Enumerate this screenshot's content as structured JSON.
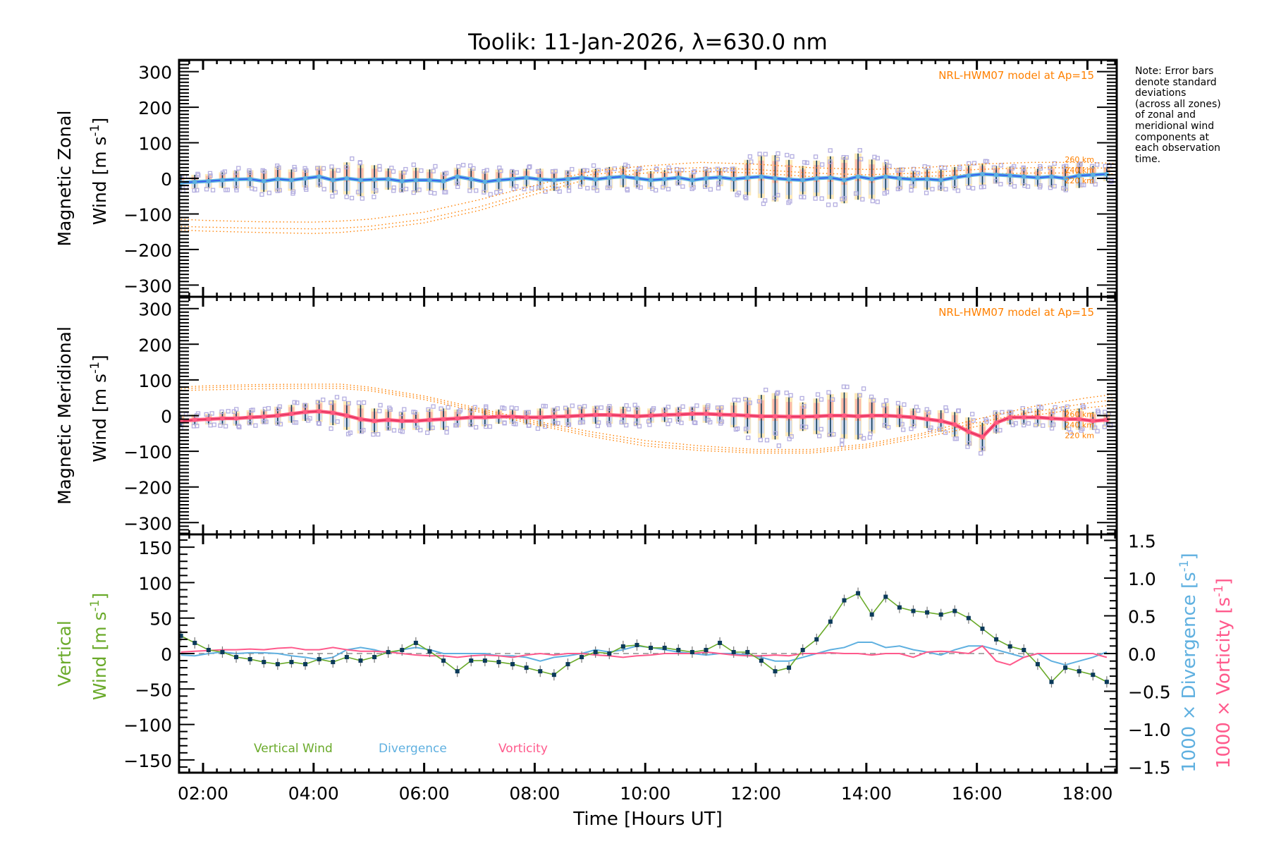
{
  "chart_data": {
    "type": "line",
    "title": "Toolik: 11-Jan-2026, λ=630.0 nm",
    "xlabel": "Time [Hours UT]",
    "xlim": [
      1.566,
      18.53
    ],
    "x_ticks": [
      {
        "v": 2,
        "label": "02:00"
      },
      {
        "v": 4,
        "label": "04:00"
      },
      {
        "v": 6,
        "label": "06:00"
      },
      {
        "v": 8,
        "label": "08:00"
      },
      {
        "v": 10,
        "label": "10:00"
      },
      {
        "v": 12,
        "label": "12:00"
      },
      {
        "v": 14,
        "label": "14:00"
      },
      {
        "v": 16,
        "label": "16:00"
      },
      {
        "v": 18,
        "label": "18:00"
      }
    ],
    "t_start": 1.6,
    "t_step": 0.25,
    "model_hours": [
      1.6,
      2,
      3,
      4,
      4.5,
      5,
      6,
      7,
      8,
      9,
      10,
      11,
      12,
      13,
      14,
      15,
      16,
      17,
      18,
      18.5
    ],
    "note": [
      "Note: Error bars",
      "denote standard",
      "deviations",
      "(across all zones)",
      "of zonal and",
      "meridional wind",
      "components at",
      "each observation",
      "time."
    ],
    "panels": [
      {
        "id": "zonal",
        "ylabel_line1": "Magnetic Zonal",
        "ylabel_line2": "Wind [m s",
        "ylabel_sup": "-1",
        "ylabel_close": "]",
        "ylim": [
          -333,
          333
        ],
        "y_ticks": [
          {
            "v": 300,
            "label": "300"
          },
          {
            "v": 200,
            "label": "200"
          },
          {
            "v": 100,
            "label": "100"
          },
          {
            "v": 0,
            "label": "0"
          },
          {
            "v": -100,
            "label": "−100"
          },
          {
            "v": -200,
            "label": "−200"
          },
          {
            "v": -300,
            "label": "−300"
          }
        ],
        "model_label": "NRL-HWM07 model at Ap=15",
        "series_color": "#5ab0e0",
        "series_core_color": "#3050f0",
        "values": [
          -12,
          -10,
          -8,
          -5,
          -3,
          -2,
          -8,
          -2,
          -5,
          0,
          5,
          -5,
          0,
          -5,
          -3,
          -2,
          -8,
          -5,
          -5,
          -8,
          5,
          -2,
          -10,
          -5,
          -2,
          2,
          -3,
          -5,
          -2,
          2,
          -3,
          2,
          5,
          0,
          -5,
          -2,
          2,
          -5,
          0,
          3,
          -2,
          2,
          5,
          0,
          -3,
          -5,
          0,
          2,
          -5,
          5,
          -2,
          5,
          0,
          -3,
          -2,
          -5,
          2,
          8,
          12,
          10,
          8,
          5,
          2,
          5,
          0,
          8,
          10,
          12
        ],
        "std": [
          20,
          20,
          20,
          22,
          25,
          25,
          30,
          35,
          30,
          25,
          30,
          35,
          45,
          45,
          40,
          30,
          30,
          35,
          30,
          25,
          25,
          30,
          30,
          30,
          25,
          25,
          30,
          30,
          25,
          25,
          30,
          30,
          30,
          25,
          25,
          25,
          20,
          20,
          25,
          25,
          35,
          50,
          60,
          65,
          55,
          40,
          50,
          60,
          65,
          65,
          55,
          40,
          30,
          25,
          30,
          30,
          30,
          30,
          30,
          25,
          25,
          25,
          25,
          30,
          35,
          35,
          25,
          20
        ],
        "models": [
          {
            "label": "260 km",
            "values": [
              -115,
              -118,
              -122,
              -123,
              -120,
              -115,
              -95,
              -60,
              -20,
              20,
              35,
              45,
              40,
              30,
              25,
              30,
              40,
              45,
              45,
              42
            ]
          },
          {
            "label": "240 km",
            "values": [
              -135,
              -137,
              -140,
              -142,
              -140,
              -135,
              -115,
              -80,
              -35,
              10,
              25,
              30,
              25,
              15,
              10,
              15,
              25,
              30,
              30,
              28
            ]
          },
          {
            "label": "220 km",
            "values": [
              -145,
              -148,
              -152,
              -155,
              -152,
              -145,
              -125,
              -90,
              -45,
              0,
              15,
              20,
              15,
              5,
              0,
              5,
              12,
              15,
              15,
              12
            ]
          }
        ]
      },
      {
        "id": "meridional",
        "ylabel_line1": "Magnetic Meridional",
        "ylabel_line2": "Wind [m s",
        "ylabel_sup": "-1",
        "ylabel_close": "]",
        "ylim": [
          -333,
          333
        ],
        "y_ticks": [
          {
            "v": 300,
            "label": "300"
          },
          {
            "v": 200,
            "label": "200"
          },
          {
            "v": 100,
            "label": "100"
          },
          {
            "v": 0,
            "label": "0"
          },
          {
            "v": -100,
            "label": "−100"
          },
          {
            "v": -200,
            "label": "−200"
          },
          {
            "v": -300,
            "label": "−300"
          }
        ],
        "model_label": "NRL-HWM07 model at Ap=15",
        "series_color": "#ff5a80",
        "series_core_color": "#e0305a",
        "values": [
          -15,
          -12,
          -10,
          -8,
          -8,
          -5,
          -3,
          0,
          5,
          10,
          12,
          8,
          0,
          -10,
          -15,
          -12,
          -15,
          -15,
          -12,
          -10,
          -8,
          -5,
          -5,
          -3,
          -3,
          -5,
          -5,
          -3,
          -2,
          0,
          2,
          2,
          0,
          -2,
          0,
          2,
          3,
          5,
          5,
          3,
          2,
          0,
          -2,
          -2,
          -3,
          -3,
          -2,
          0,
          0,
          -2,
          0,
          0,
          -2,
          -5,
          -10,
          -15,
          -25,
          -45,
          -60,
          -20,
          -5,
          -5,
          -5,
          -8,
          -10,
          -10,
          -15,
          -12
        ],
        "std": [
          15,
          15,
          15,
          18,
          20,
          20,
          20,
          25,
          25,
          25,
          30,
          35,
          40,
          40,
          35,
          30,
          25,
          25,
          30,
          30,
          25,
          25,
          25,
          20,
          20,
          20,
          25,
          25,
          25,
          25,
          25,
          25,
          25,
          25,
          20,
          20,
          20,
          20,
          25,
          25,
          35,
          50,
          60,
          65,
          55,
          40,
          50,
          60,
          65,
          65,
          50,
          35,
          30,
          25,
          25,
          30,
          35,
          40,
          40,
          30,
          20,
          20,
          25,
          25,
          30,
          30,
          25,
          20
        ],
        "models": [
          {
            "label": "260 km",
            "values": [
              80,
              83,
              87,
              88,
              88,
              80,
              55,
              20,
              -15,
              -45,
              -70,
              -85,
              -95,
              -95,
              -80,
              -50,
              -10,
              25,
              50,
              60
            ]
          },
          {
            "label": "240 km",
            "values": [
              75,
              78,
              82,
              83,
              82,
              75,
              50,
              15,
              -20,
              -52,
              -78,
              -92,
              -100,
              -100,
              -85,
              -55,
              -20,
              10,
              35,
              45
            ]
          },
          {
            "label": "220 km",
            "values": [
              70,
              72,
              75,
              77,
              76,
              70,
              45,
              10,
              -25,
              -58,
              -85,
              -98,
              -105,
              -105,
              -90,
              -62,
              -30,
              0,
              22,
              30
            ]
          }
        ]
      },
      {
        "id": "vertical",
        "ylabel_line1": "Vertical",
        "ylabel_line2": "Wind [m s",
        "ylabel_sup": "-1",
        "ylabel_close": "]",
        "ylim": [
          -168,
          168
        ],
        "y_ticks": [
          {
            "v": 150,
            "label": "150"
          },
          {
            "v": 100,
            "label": "100"
          },
          {
            "v": 50,
            "label": "50"
          },
          {
            "v": 0,
            "label": "0"
          },
          {
            "v": -50,
            "label": "−50"
          },
          {
            "v": -100,
            "label": "−100"
          },
          {
            "v": -150,
            "label": "−150"
          }
        ],
        "y2lim": [
          -1.58,
          1.58
        ],
        "y2_ticks": [
          {
            "v": 1.5,
            "label": "1.5"
          },
          {
            "v": 1.0,
            "label": "1.0"
          },
          {
            "v": 0.5,
            "label": "0.5"
          },
          {
            "v": 0,
            "label": "0.0"
          },
          {
            "v": -0.5,
            "label": "−0.5"
          },
          {
            "v": -1.0,
            "label": "−1.0"
          },
          {
            "v": -1.5,
            "label": "−1.5"
          }
        ],
        "y2_label_div": "1000 × Divergence [s",
        "y2_label_vort": "1000 × Vorticity [s",
        "y2_sup": "-1",
        "y2_close": "]",
        "legend": [
          {
            "label": "Vertical Wind",
            "color": "#6aaa2a"
          },
          {
            "label": "Divergence",
            "color": "#5fb0e0"
          },
          {
            "label": "Vorticity",
            "color": "#ff5a8c"
          }
        ],
        "series": [
          {
            "name": "Vertical Wind",
            "axis": "left",
            "color": "#6aaa2a",
            "marker_color": "#0b3a5a",
            "err": 8,
            "values": [
              25,
              15,
              5,
              2,
              -5,
              -8,
              -12,
              -15,
              -12,
              -15,
              -8,
              -12,
              -5,
              -10,
              -5,
              2,
              5,
              15,
              3,
              -10,
              -25,
              -10,
              -10,
              -12,
              -15,
              -20,
              -25,
              -30,
              -15,
              -5,
              2,
              0,
              10,
              12,
              8,
              8,
              5,
              2,
              5,
              15,
              2,
              2,
              -10,
              -25,
              -20,
              5,
              20,
              45,
              75,
              85,
              55,
              80,
              65,
              60,
              58,
              55,
              60,
              50,
              35,
              20,
              10,
              5,
              -15,
              -40,
              -20,
              -25,
              -30,
              -40
            ]
          },
          {
            "name": "Divergence",
            "axis": "right",
            "color": "#5fb0e0",
            "values": [
              -0.02,
              -0.03,
              0.0,
              0.02,
              0.0,
              0.01,
              0.01,
              0.0,
              -0.03,
              -0.05,
              -0.08,
              -0.05,
              0.05,
              0.08,
              0.05,
              0.0,
              0.05,
              0.08,
              0.05,
              0.0,
              0.0,
              0.0,
              0.0,
              -0.03,
              -0.03,
              -0.05,
              -0.1,
              -0.05,
              -0.03,
              0.0,
              0.05,
              0.02,
              0.05,
              0.1,
              0.08,
              0.05,
              0.02,
              0.0,
              -0.02,
              0.0,
              0.0,
              -0.02,
              -0.05,
              -0.1,
              -0.1,
              -0.05,
              0.0,
              0.05,
              0.08,
              0.15,
              0.15,
              0.08,
              0.1,
              0.05,
              0.02,
              -0.02,
              0.05,
              0.1,
              0.1,
              0.05,
              0.0,
              -0.05,
              0.0,
              -0.1,
              -0.15,
              -0.1,
              -0.05,
              0.02
            ]
          },
          {
            "name": "Vorticity",
            "axis": "right",
            "color": "#ff5a8c",
            "values": [
              0.02,
              0.03,
              0.04,
              0.05,
              0.05,
              0.06,
              0.05,
              0.07,
              0.08,
              0.05,
              0.05,
              0.08,
              0.05,
              0.03,
              0.03,
              0.02,
              0.0,
              -0.02,
              -0.03,
              -0.03,
              -0.05,
              -0.03,
              -0.02,
              -0.03,
              -0.05,
              -0.02,
              0.0,
              -0.02,
              0.0,
              0.0,
              -0.02,
              -0.03,
              -0.05,
              -0.03,
              -0.02,
              0.0,
              0.0,
              0.0,
              0.02,
              0.0,
              -0.02,
              -0.03,
              -0.03,
              -0.02,
              -0.03,
              0.0,
              0.0,
              0.01,
              0.0,
              0.0,
              -0.02,
              0.0,
              0.0,
              -0.05,
              0.02,
              0.03,
              0.02,
              0.0,
              0.1,
              -0.1,
              -0.15,
              -0.05,
              0.0,
              0.0,
              0.0,
              0.0,
              0.0,
              -0.05
            ]
          }
        ]
      }
    ]
  }
}
